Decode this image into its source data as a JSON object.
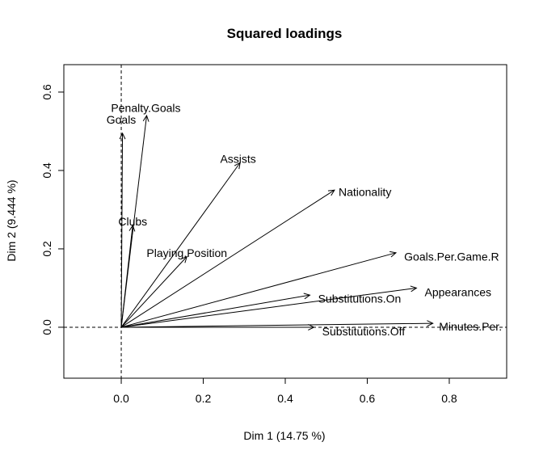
{
  "chart_data": {
    "type": "scatter",
    "subtype": "vector-loadings",
    "title": "Squared loadings",
    "xlabel": "Dim 1 (14.75 %)",
    "ylabel": "Dim 2 (9.444 %)",
    "xlim": [
      -0.14,
      0.94
    ],
    "ylim": [
      -0.13,
      0.67
    ],
    "xticks": [
      0.0,
      0.2,
      0.4,
      0.6,
      0.8
    ],
    "xtick_labels": [
      "0.0",
      "0.2",
      "0.4",
      "0.6",
      "0.8"
    ],
    "yticks": [
      0.0,
      0.2,
      0.4,
      0.6
    ],
    "ytick_labels": [
      "0.0",
      "0.2",
      "0.4",
      "0.6"
    ],
    "reference_lines": {
      "x": 0,
      "y": 0,
      "style": "dashed"
    },
    "grid": false,
    "vectors": [
      {
        "label": "Goals",
        "x": 0.003,
        "y": 0.495,
        "label_x": 0.0,
        "label_y": 0.53,
        "label_anchor": "middle"
      },
      {
        "label": "Penalty.Goals",
        "x": 0.062,
        "y": 0.54,
        "label_x": 0.06,
        "label_y": 0.56,
        "label_anchor": "middle"
      },
      {
        "label": "Assists",
        "x": 0.29,
        "y": 0.42,
        "label_x": 0.285,
        "label_y": 0.43,
        "label_anchor": "middle"
      },
      {
        "label": "Nationality",
        "x": 0.52,
        "y": 0.35,
        "label_x": 0.53,
        "label_y": 0.345,
        "label_anchor": "start"
      },
      {
        "label": "Clubs",
        "x": 0.028,
        "y": 0.26,
        "label_x": 0.028,
        "label_y": 0.27,
        "label_anchor": "middle"
      },
      {
        "label": "Playing.Position",
        "x": 0.16,
        "y": 0.18,
        "label_x": 0.16,
        "label_y": 0.19,
        "label_anchor": "middle"
      },
      {
        "label": "Goals.Per.Game.R",
        "x": 0.67,
        "y": 0.19,
        "label_x": 0.69,
        "label_y": 0.18,
        "label_anchor": "start"
      },
      {
        "label": "Appearances",
        "x": 0.72,
        "y": 0.1,
        "label_x": 0.74,
        "label_y": 0.09,
        "label_anchor": "start"
      },
      {
        "label": "Substitutions.On",
        "x": 0.46,
        "y": 0.082,
        "label_x": 0.48,
        "label_y": 0.073,
        "label_anchor": "start"
      },
      {
        "label": "Minutes.Per.",
        "x": 0.76,
        "y": 0.01,
        "label_x": 0.775,
        "label_y": 0.002,
        "label_anchor": "start"
      },
      {
        "label": "Substitutions.Off",
        "x": 0.47,
        "y": 0.0,
        "label_x": 0.49,
        "label_y": -0.01,
        "label_anchor": "start"
      }
    ]
  }
}
